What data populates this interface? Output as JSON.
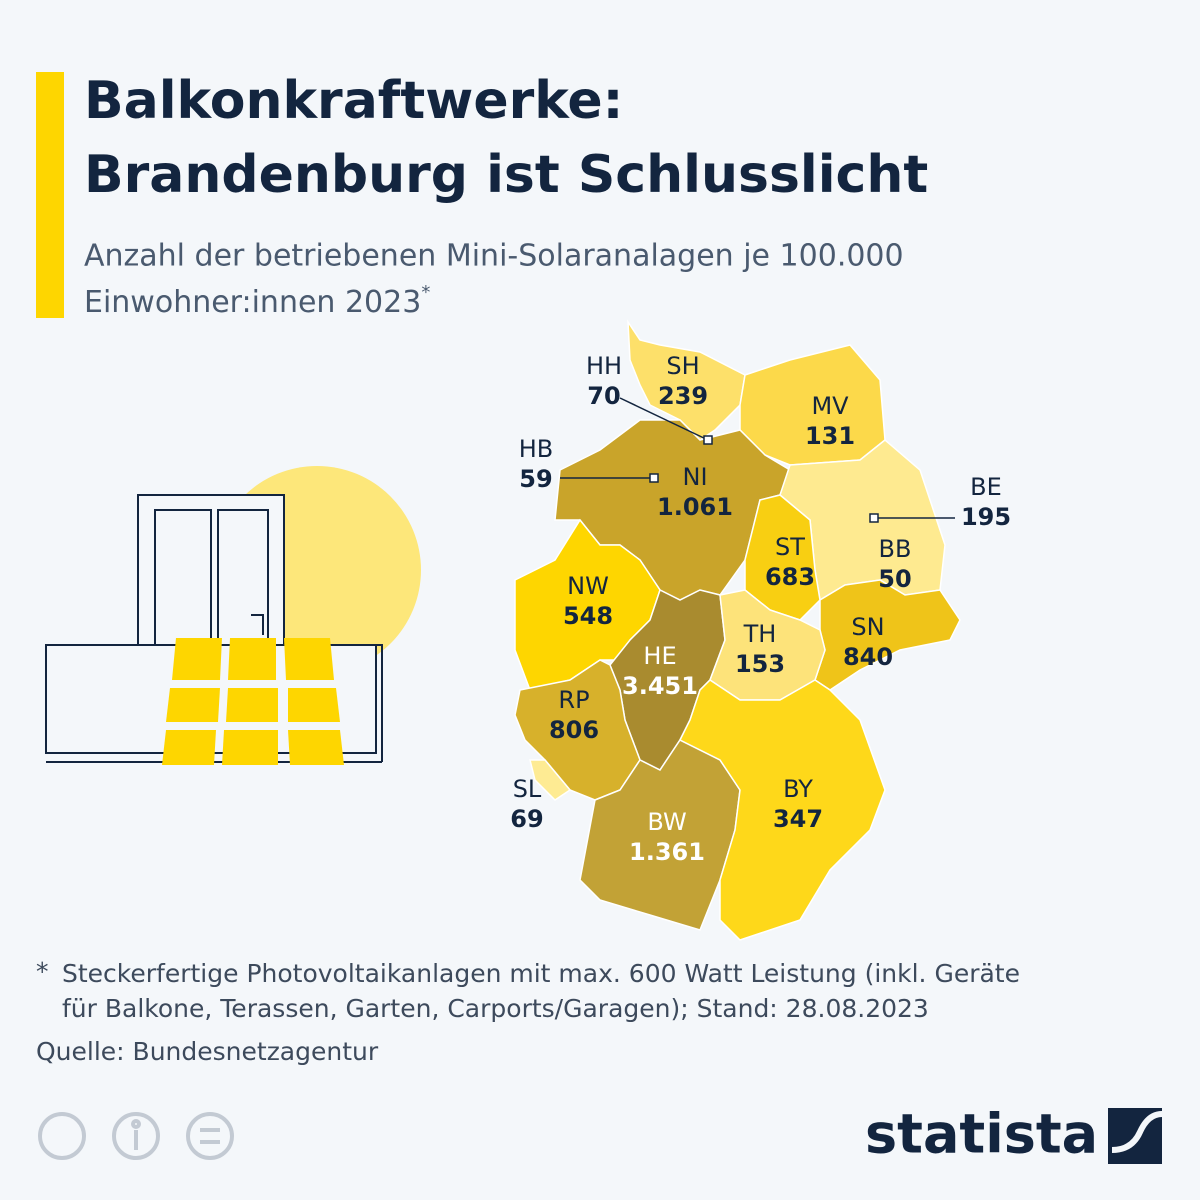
{
  "header": {
    "title_lines": [
      "Balkonkraftwerke:",
      "Brandenburg ist Schlusslicht"
    ],
    "subtitle_lines": [
      "Anzahl der betriebenen Mini-Solaranalagen je 100.000",
      "Einwohner:innen 2023"
    ],
    "subtitle_mark": "*"
  },
  "map": {
    "regions": [
      {
        "code": "SH",
        "value": 239,
        "color": "#fde06a"
      },
      {
        "code": "HH",
        "value": 70,
        "color": "#ffffff"
      },
      {
        "code": "MV",
        "value": 131,
        "color": "#fcd94a"
      },
      {
        "code": "HB",
        "value": 59,
        "color": "#ffffff"
      },
      {
        "code": "NI",
        "value": 1061,
        "value_label": "1.061",
        "color": "#c9a42a"
      },
      {
        "code": "BE",
        "value": 195,
        "color": "#ffffff"
      },
      {
        "code": "BB",
        "value": 50,
        "color": "#feea90"
      },
      {
        "code": "ST",
        "value": 683,
        "color": "#f8cf12"
      },
      {
        "code": "NW",
        "value": 548,
        "color": "#fed600"
      },
      {
        "code": "SN",
        "value": 840,
        "color": "#efc419"
      },
      {
        "code": "HE",
        "value": 3451,
        "value_label": "3.451",
        "color": "#a98b2f"
      },
      {
        "code": "TH",
        "value": 153,
        "color": "#fde37a"
      },
      {
        "code": "RP",
        "value": 806,
        "color": "#d7b12b"
      },
      {
        "code": "SL",
        "value": 69,
        "color": "#feeb93"
      },
      {
        "code": "BW",
        "value": 1361,
        "value_label": "1.361",
        "color": "#c2a236"
      },
      {
        "code": "BY",
        "value": 347,
        "color": "#fed81a"
      }
    ]
  },
  "footer": {
    "note_mark": "*",
    "note_lines": [
      "Steckerfertige Photovoltaikanlagen mit max. 600 Watt Leistung (inkl. Geräte",
      "für Balkone, Terassen, Garten, Carports/Garagen); Stand: 28.08.2023"
    ],
    "source": "Quelle: Bundesnetzagentur",
    "brand": "statista"
  }
}
